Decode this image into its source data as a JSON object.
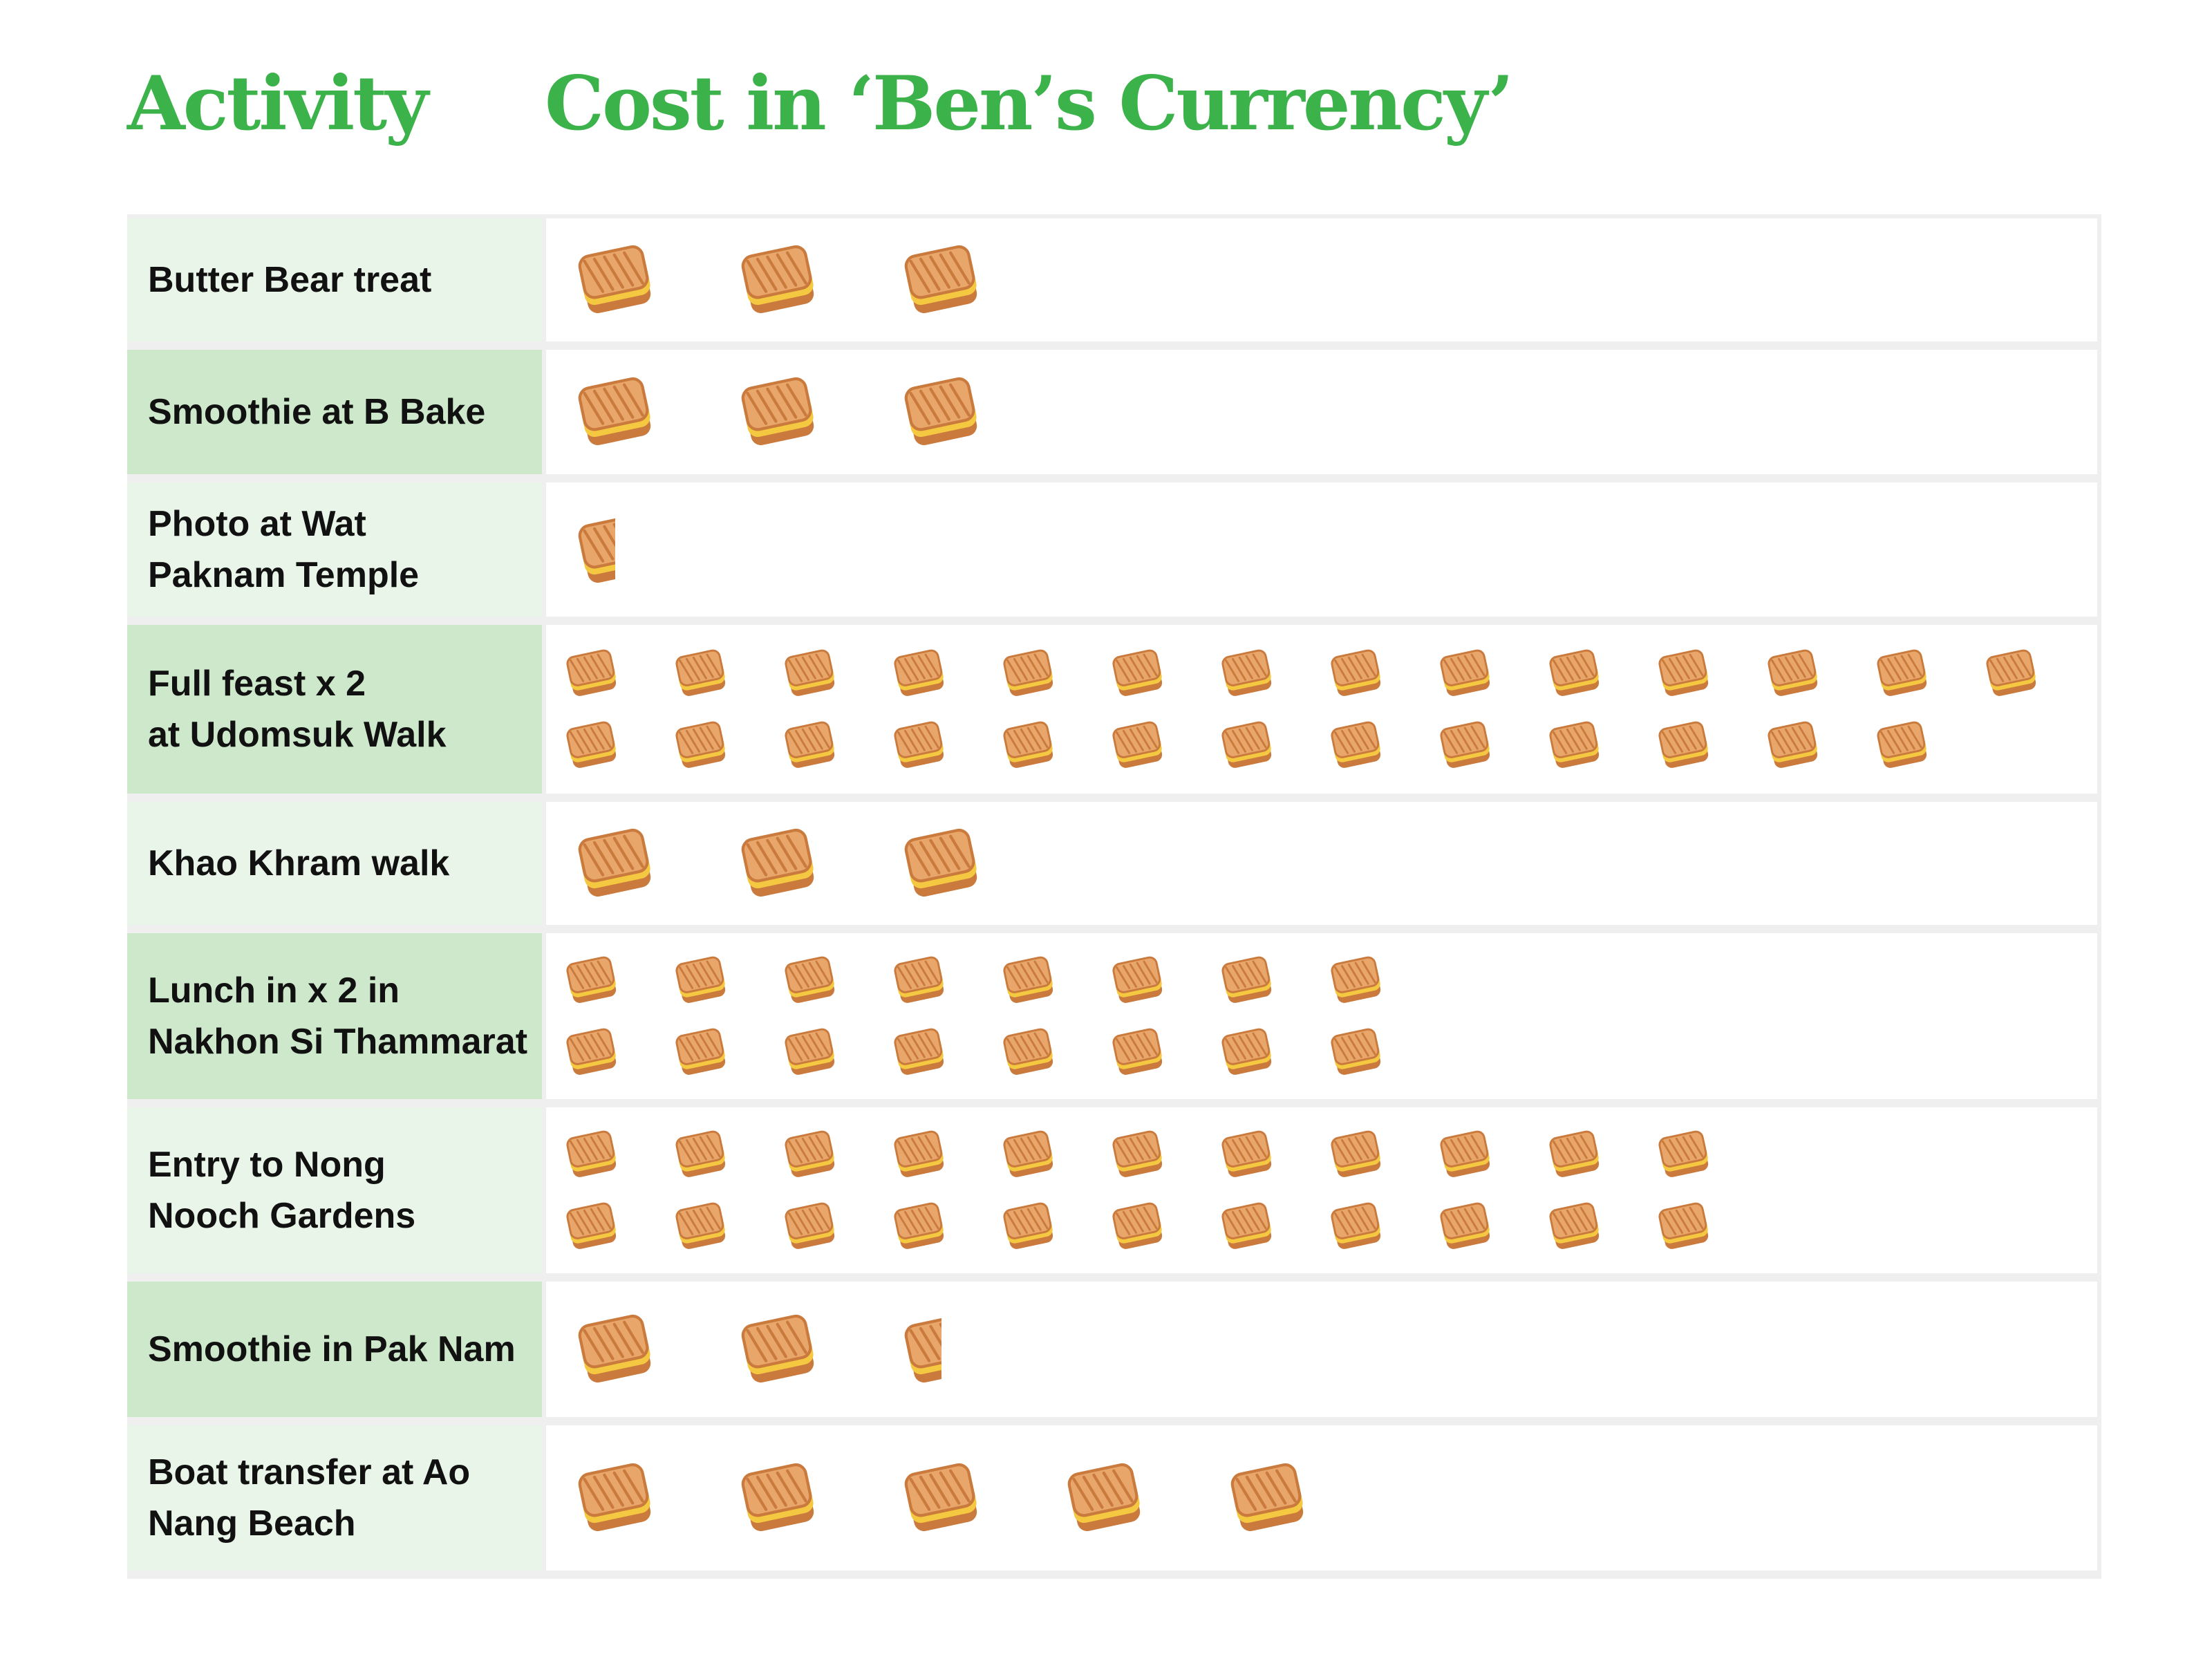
{
  "headers": {
    "activity": "Activity",
    "cost": "Cost in ‘Ben’s Currency’"
  },
  "colors": {
    "header_green": "#3cb24a",
    "row_label_light": "#eaf5e9",
    "row_label_dark": "#cde8cb",
    "toast_bread": "#e8a66b",
    "toast_crust": "#c97a3c",
    "toast_cheese": "#f5c842"
  },
  "icon": "grilled-cheese-sandwich-icon",
  "chart_data": {
    "type": "pictograph",
    "categories": [
      "Butter Bear treat",
      "Smoothie at B Bake",
      "Photo at Wat\nPaknam Temple",
      "Full feast x 2\nat Udomsuk Walk",
      "Khao Khram walk",
      "Lunch in x 2 in\nNakhon Si Thammarat",
      "Entry to Nong\nNooch Gardens",
      "Smoothie in Pak Nam",
      "Boat transfer at Ao\nNang Beach"
    ],
    "values": [
      3,
      3,
      0.5,
      27,
      3,
      16,
      22,
      2.5,
      5
    ]
  }
}
